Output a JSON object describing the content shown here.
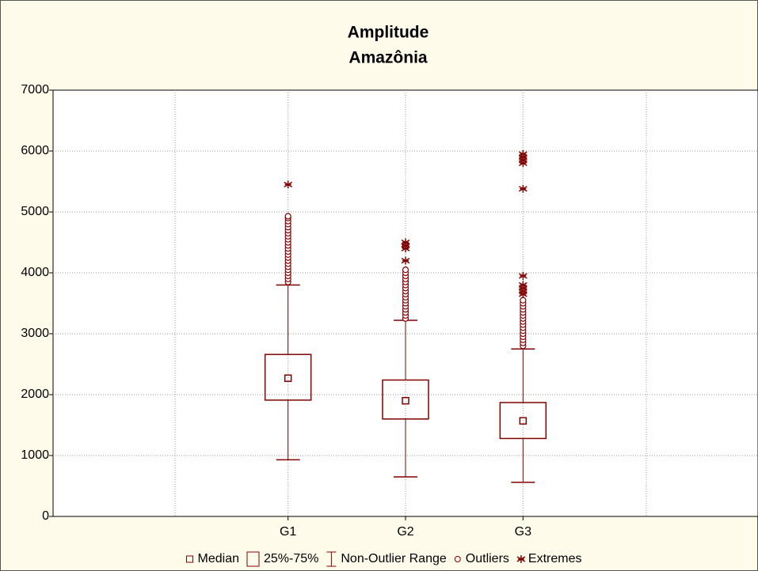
{
  "chart_data": {
    "type": "box",
    "title": "Amplitude",
    "subtitle": "Amazônia",
    "categories": [
      "G1",
      "G2",
      "G3"
    ],
    "median": [
      2270,
      1900,
      1570
    ],
    "q1": [
      1910,
      1600,
      1280
    ],
    "q3": [
      2660,
      2240,
      1870
    ],
    "whisker_low": [
      930,
      650,
      560
    ],
    "whisker_high": [
      3800,
      3220,
      2750
    ],
    "outliers": [
      [
        3850,
        3900,
        3950,
        4000,
        4050,
        4100,
        4150,
        4200,
        4250,
        4300,
        4350,
        4400,
        4450,
        4500,
        4550,
        4600,
        4650,
        4700,
        4750,
        4800,
        4850,
        4900,
        4930
      ],
      [
        3250,
        3300,
        3350,
        3400,
        3450,
        3500,
        3550,
        3600,
        3650,
        3700,
        3750,
        3800,
        3850,
        3900,
        3950,
        4000,
        4050
      ],
      [
        2800,
        2850,
        2900,
        2950,
        3000,
        3050,
        3100,
        3150,
        3200,
        3250,
        3300,
        3350,
        3400,
        3450,
        3500,
        3550
      ]
    ],
    "extremes": [
      [
        5450
      ],
      [
        4200,
        4400,
        4450,
        4500
      ],
      [
        3650,
        3700,
        3750,
        3800,
        3950,
        5380,
        5800,
        5850,
        5900,
        5950
      ]
    ],
    "color": "#800000",
    "ylim": [
      0,
      7000
    ],
    "yticks": [
      0,
      1000,
      2000,
      3000,
      4000,
      5000,
      6000,
      7000
    ],
    "grid": true,
    "legend": [
      "Median",
      "25%-75%",
      "Non-Outlier Range",
      "Outliers",
      "Extremes"
    ]
  }
}
